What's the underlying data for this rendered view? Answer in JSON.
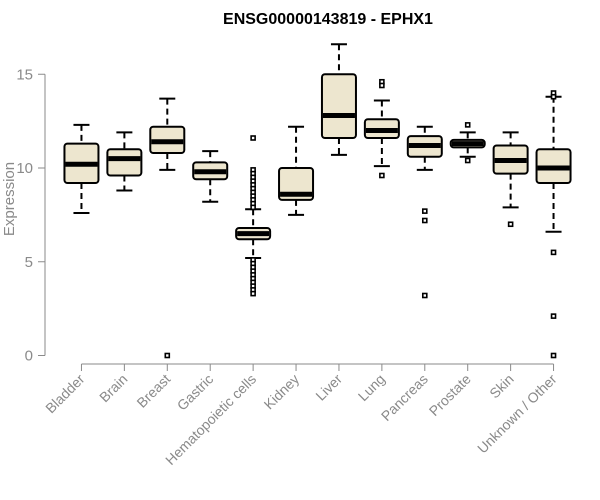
{
  "chart_data": {
    "type": "box",
    "title": "ENSG00000143819 - EPHX1",
    "ylabel": "Expression",
    "xlabel": "",
    "ylim": [
      0,
      16.5
    ],
    "yticks": [
      0,
      5,
      10,
      15
    ],
    "box_color": "#ede6cf",
    "categories": [
      "Bladder",
      "Brain",
      "Breast",
      "Gastric",
      "Hematopoietic cells",
      "Kidney",
      "Liver",
      "Lung",
      "Pancreas",
      "Prostate",
      "Skin",
      "Unknown / Other"
    ],
    "boxes": [
      {
        "category": "Bladder",
        "whisker_low": 7.6,
        "q1": 9.2,
        "median": 10.2,
        "q3": 11.3,
        "whisker_high": 12.3,
        "outliers": []
      },
      {
        "category": "Brain",
        "whisker_low": 8.8,
        "q1": 9.6,
        "median": 10.5,
        "q3": 11.0,
        "whisker_high": 11.9,
        "outliers": []
      },
      {
        "category": "Breast",
        "whisker_low": 9.9,
        "q1": 10.8,
        "median": 11.4,
        "q3": 12.2,
        "whisker_high": 13.7,
        "outliers": [
          0.0
        ]
      },
      {
        "category": "Gastric",
        "whisker_low": 8.2,
        "q1": 9.4,
        "median": 9.8,
        "q3": 10.3,
        "whisker_high": 10.9,
        "outliers": []
      },
      {
        "category": "Hematopoietic cells",
        "whisker_low": 5.2,
        "q1": 6.2,
        "median": 6.5,
        "q3": 6.8,
        "whisker_high": 7.8,
        "outliers": [
          11.6,
          9.9,
          9.7,
          9.5,
          9.3,
          9.1,
          8.9,
          8.7,
          8.5,
          8.3,
          8.1,
          7.9,
          5.1,
          4.9,
          4.7,
          4.5,
          4.3,
          4.1,
          3.9,
          3.7,
          3.5,
          3.3
        ]
      },
      {
        "category": "Kidney",
        "whisker_low": 7.5,
        "q1": 8.3,
        "median": 8.6,
        "q3": 10.0,
        "whisker_high": 12.2,
        "outliers": []
      },
      {
        "category": "Liver",
        "whisker_low": 10.7,
        "q1": 11.6,
        "median": 12.8,
        "q3": 15.0,
        "whisker_high": 16.6,
        "outliers": []
      },
      {
        "category": "Lung",
        "whisker_low": 10.1,
        "q1": 11.6,
        "median": 12.0,
        "q3": 12.6,
        "whisker_high": 13.6,
        "outliers": [
          14.6,
          14.4,
          9.6
        ]
      },
      {
        "category": "Pancreas",
        "whisker_low": 9.9,
        "q1": 10.6,
        "median": 11.2,
        "q3": 11.7,
        "whisker_high": 12.2,
        "outliers": [
          7.7,
          7.2,
          3.2
        ]
      },
      {
        "category": "Prostate",
        "whisker_low": 10.6,
        "q1": 11.1,
        "median": 11.3,
        "q3": 11.5,
        "whisker_high": 11.9,
        "outliers": [
          12.3,
          10.4
        ]
      },
      {
        "category": "Skin",
        "whisker_low": 7.9,
        "q1": 9.7,
        "median": 10.4,
        "q3": 11.2,
        "whisker_high": 11.9,
        "outliers": [
          7.0
        ]
      },
      {
        "category": "Unknown / Other",
        "whisker_low": 6.6,
        "q1": 9.2,
        "median": 10.0,
        "q3": 11.0,
        "whisker_high": 13.8,
        "outliers": [
          14.0,
          13.8,
          5.5,
          2.1,
          0.0
        ]
      }
    ]
  }
}
